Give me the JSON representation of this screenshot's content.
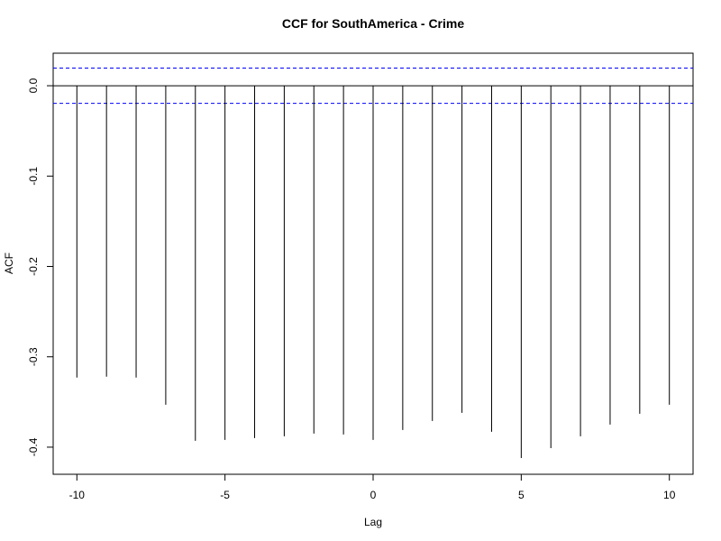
{
  "chart_data": {
    "type": "bar",
    "title": "CCF for SouthAmerica - Crime",
    "xlabel": "Lag",
    "ylabel": "ACF",
    "x": [
      -10,
      -9,
      -8,
      -7,
      -6,
      -5,
      -4,
      -3,
      -2,
      -1,
      0,
      1,
      2,
      3,
      4,
      5,
      6,
      7,
      8,
      9,
      10
    ],
    "values": [
      -0.323,
      -0.322,
      -0.323,
      -0.353,
      -0.393,
      -0.392,
      -0.39,
      -0.388,
      -0.385,
      -0.386,
      -0.392,
      -0.381,
      -0.371,
      -0.362,
      -0.383,
      -0.412,
      -0.401,
      -0.388,
      -0.375,
      -0.363,
      -0.353
    ],
    "xlim": [
      -10.8,
      10.8
    ],
    "ylim": [
      -0.43,
      0.036
    ],
    "x_ticks": [
      -10,
      -5,
      0,
      5,
      10
    ],
    "x_tick_labels": [
      "-10",
      "-5",
      "0",
      "5",
      "10"
    ],
    "y_ticks": [
      0.0,
      -0.1,
      -0.2,
      -0.3,
      -0.4
    ],
    "y_tick_labels": [
      "0.0",
      "-0.1",
      "-0.2",
      "-0.3",
      "-0.4"
    ],
    "confidence_bound": 0.0195,
    "zero_line": true,
    "grid": false,
    "colors": {
      "bars": "#000000",
      "confidence": "#0000ff",
      "zero_line": "#000000"
    }
  }
}
